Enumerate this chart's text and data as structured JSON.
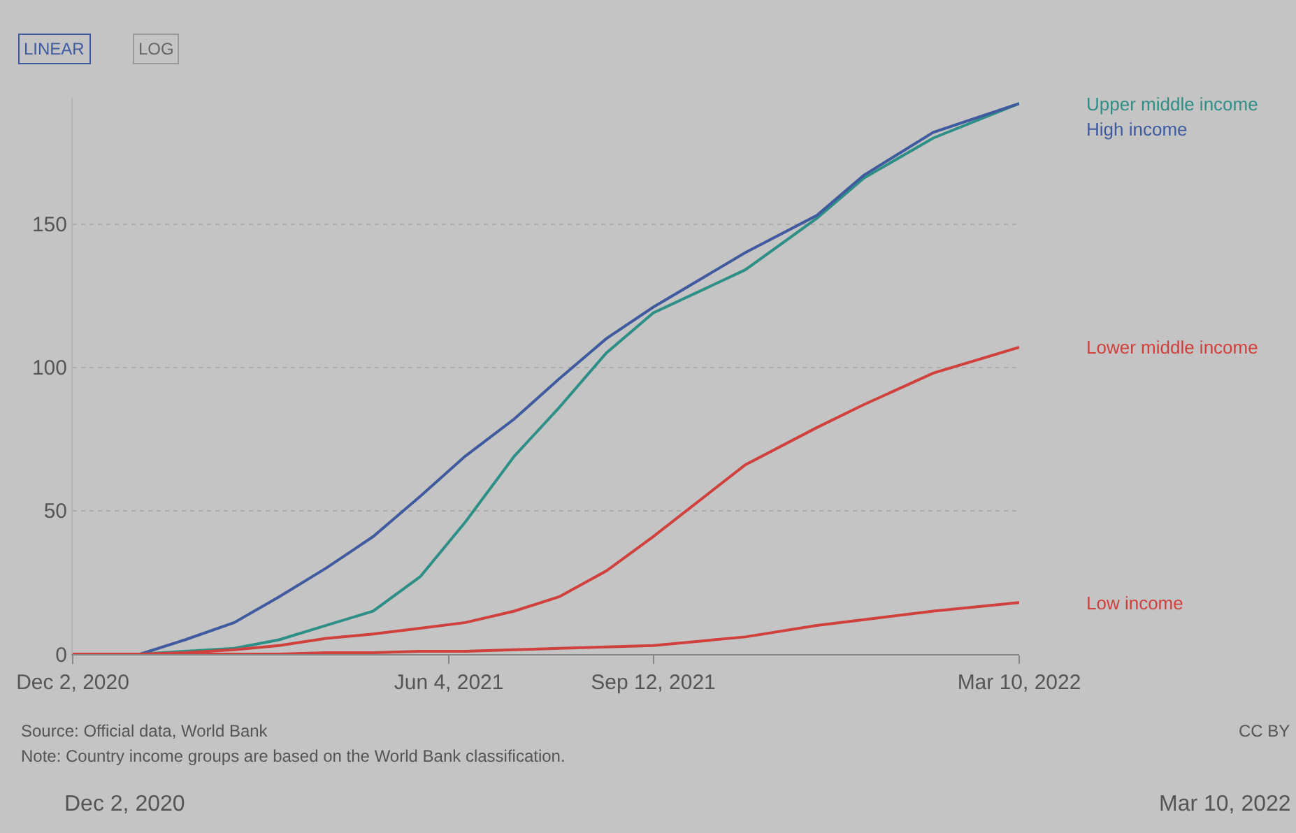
{
  "chart_data": {
    "type": "line",
    "x": [
      "2020-12-02",
      "2021-01-04",
      "2021-01-26",
      "2021-02-19",
      "2021-03-13",
      "2021-04-05",
      "2021-04-28",
      "2021-05-21",
      "2021-06-12",
      "2021-07-06",
      "2021-07-28",
      "2021-08-20",
      "2021-09-12",
      "2021-10-27",
      "2021-12-01",
      "2021-12-24",
      "2022-01-27",
      "2022-03-10"
    ],
    "series": [
      {
        "name": "Upper middle income",
        "color": "#2e8f87",
        "values": [
          0,
          0,
          1,
          2,
          5,
          10,
          15,
          27,
          46,
          69,
          86,
          105,
          119,
          134,
          152,
          166,
          180,
          192
        ]
      },
      {
        "name": "High income",
        "color": "#3f5a9e",
        "values": [
          0,
          0,
          5,
          11,
          20,
          30,
          41,
          55,
          69,
          82,
          96,
          110,
          121,
          140,
          153,
          167,
          182,
          192
        ]
      },
      {
        "name": "Lower middle income",
        "color": "#d0403d",
        "values": [
          0,
          0,
          0.5,
          1.5,
          3,
          5.5,
          7,
          9,
          11,
          15,
          20,
          29,
          41,
          66,
          79,
          87,
          98,
          107
        ]
      },
      {
        "name": "Low income",
        "color": "#d0403d",
        "values": [
          0,
          0,
          0,
          0,
          0,
          0.5,
          0.5,
          1,
          1,
          1.5,
          2,
          2.5,
          3,
          6,
          10,
          12,
          15,
          18
        ]
      }
    ],
    "xlim": [
      "2020-12-02",
      "2022-03-10"
    ],
    "xticks": [
      {
        "value": "2020-12-02",
        "label": "Dec 2, 2020"
      },
      {
        "value": "2021-06-04",
        "label": "Jun 4, 2021"
      },
      {
        "value": "2021-09-12",
        "label": "Sep 12, 2021"
      },
      {
        "value": "2022-03-10",
        "label": "Mar 10, 2022"
      }
    ],
    "ylim": [
      0,
      194
    ],
    "yticks": [
      0,
      50,
      100,
      150
    ],
    "grid": "y",
    "legend": false,
    "marker": "none",
    "line_style": "solid",
    "annotations": [
      "LINEAR",
      "LOG",
      "Source: Official data, World Bank",
      "Note: Country income groups are based on the World Bank classification.",
      "CC BY",
      "Dec 2, 2020",
      "Mar 10, 2022"
    ]
  }
}
